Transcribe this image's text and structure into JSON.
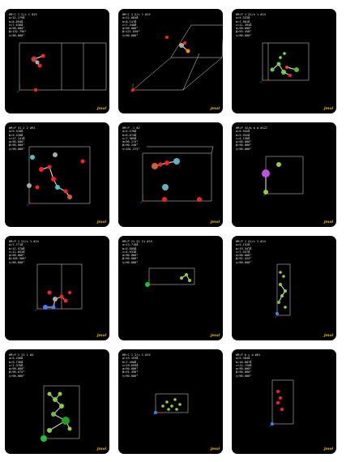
{
  "panels": [
    {
      "lines": [
        "HM:C 1 2/c 1 #15",
        "a=12.179Å",
        "b=8.094Å",
        "c=7.636Å",
        "α=90.000°",
        "β=132.790°",
        "γ=90.000°"
      ],
      "logo": "Jmol"
    },
    {
      "lines": [
        "HM:C 1 2/c 1 #15",
        "a=12.084Å",
        "b=8.147Å",
        "c=7.548Å",
        "α=90.000°",
        "β=121.830°",
        "γ=90.000°"
      ],
      "logo": "Jmol"
    },
    {
      "lines": [
        "HM:P 1 21/n 1 #14",
        "a=5.533Å",
        "b=7.901Å",
        "c=11.394Å",
        "α=90.000°",
        "β=93.450°",
        "γ=90.000°"
      ],
      "logo": "Jmol"
    },
    {
      "lines": [
        "HM:P 41 2 2 #91",
        "a=9.528Å",
        "b=9.528Å",
        "c=17.141Å",
        "α=90.000°",
        "β=90.000°",
        "γ=90.000°"
      ],
      "logo": "Jmol"
    },
    {
      "lines": [
        "HM:P -1 #2",
        "a=5.570Å",
        "b=6.674Å",
        "c=7.969Å",
        "α=96.174°",
        "β=90.240°",
        "γ=101.273°"
      ],
      "logo": "Jmol"
    },
    {
      "lines": [
        "HM:P 42/m b m #127",
        "a=5.942Å",
        "b=5.942Å",
        "c=4.156Å",
        "α=90.000°",
        "β=90.000°",
        "γ=90.000°"
      ],
      "logo": "Jmol"
    },
    {
      "lines": [
        "HM:P 1 21/c 1 #14",
        "a=7.771Å",
        "b=11.570Å",
        "c=11.052Å",
        "α=90.000°",
        "β=105.500°",
        "γ=90.000°"
      ],
      "logo": "Jmol"
    },
    {
      "lines": [
        "HM:P 21 21 21 #19",
        "a=13.719Å",
        "b=5.605Å",
        "c=4.933Å",
        "α=90.000°",
        "β=90.000°",
        "γ=90.000°"
      ],
      "logo": "Jmol"
    },
    {
      "lines": [
        "HM:P 1 21/c 1 #14",
        "a=5.152Å",
        "b=19.547Å",
        "c=7.557Å",
        "α=90.000°",
        "β=92.424°",
        "γ=90.000°"
      ],
      "logo": "Jmol"
    },
    {
      "lines": [
        "HM:P 1 21 1 #4",
        "a=5.256Å",
        "b=9.736Å",
        "c=7.370Å",
        "α=90.000°",
        "β=90.675°",
        "γ=90.000°"
      ],
      "logo": "Jmol"
    },
    {
      "lines": [
        "HM:C 1 2/c 1 #15",
        "a=13.193Å",
        "b=7.490Å",
        "c=19.659Å",
        "α=90.000°",
        "β=91.490°",
        "γ=90.000°"
      ],
      "logo": "Jmol"
    },
    {
      "lines": [
        "HM:P b c a #61",
        "a=5.384Å",
        "b=18.687Å",
        "c=11.720Å",
        "α=90.000°",
        "β=90.000°",
        "γ=90.000°"
      ],
      "logo": "Jmol"
    }
  ],
  "colors": {
    "panel_bg": "#000000",
    "info_text": "#e8e8e8",
    "cell_edge": "#e0e0e0",
    "axis_a": "#ff3030",
    "axis_b": "#30c030",
    "axis_c": "#3050ff",
    "logo": "#d4b200"
  }
}
